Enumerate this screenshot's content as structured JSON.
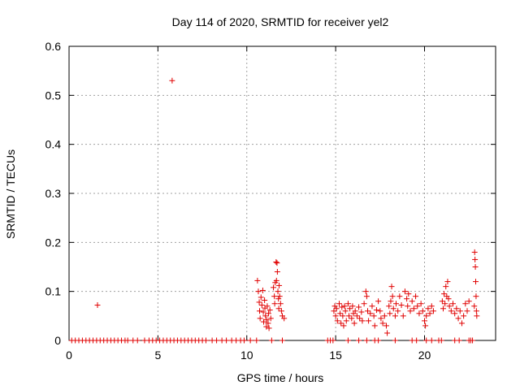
{
  "chart_data": {
    "type": "scatter",
    "title": "Day 114 of 2020, SRMTID for receiver yel2",
    "xlabel": "GPS time / hours",
    "ylabel": "SRMTID / TECUs",
    "xlim": [
      0,
      24
    ],
    "ylim": [
      0,
      0.6
    ],
    "xticks": [
      0,
      5,
      10,
      15,
      20
    ],
    "xtick_labels": [
      "0",
      "5",
      "10",
      "15",
      "20"
    ],
    "yticks": [
      0,
      0.1,
      0.2,
      0.3,
      0.4,
      0.5,
      0.6
    ],
    "ytick_labels": [
      "0",
      "0.1",
      "0.2",
      "0.3",
      "0.4",
      "0.5",
      "0.6"
    ],
    "grid": true,
    "marker": "+",
    "series": [
      {
        "name": "yel2",
        "color": "#e00000",
        "points": [
          [
            0.15,
            0
          ],
          [
            0.35,
            0
          ],
          [
            0.55,
            0
          ],
          [
            0.75,
            0
          ],
          [
            0.95,
            0
          ],
          [
            1.15,
            0
          ],
          [
            1.35,
            0
          ],
          [
            1.55,
            0
          ],
          [
            1.75,
            0
          ],
          [
            1.95,
            0
          ],
          [
            2.15,
            0
          ],
          [
            2.35,
            0
          ],
          [
            2.55,
            0
          ],
          [
            2.75,
            0
          ],
          [
            2.95,
            0
          ],
          [
            3.15,
            0
          ],
          [
            3.3,
            0
          ],
          [
            3.6,
            0
          ],
          [
            3.85,
            0
          ],
          [
            4.25,
            0
          ],
          [
            4.5,
            0
          ],
          [
            4.7,
            0
          ],
          [
            4.9,
            0
          ],
          [
            5.1,
            0
          ],
          [
            5.3,
            0
          ],
          [
            5.5,
            0
          ],
          [
            5.7,
            0
          ],
          [
            5.9,
            0
          ],
          [
            6.1,
            0
          ],
          [
            6.3,
            0
          ],
          [
            6.5,
            0
          ],
          [
            6.7,
            0
          ],
          [
            6.9,
            0
          ],
          [
            7.1,
            0
          ],
          [
            7.3,
            0
          ],
          [
            7.5,
            0
          ],
          [
            7.7,
            0
          ],
          [
            8.05,
            0
          ],
          [
            8.3,
            0
          ],
          [
            8.6,
            0
          ],
          [
            8.85,
            0
          ],
          [
            9.15,
            0
          ],
          [
            9.4,
            0
          ],
          [
            9.65,
            0
          ],
          [
            9.85,
            0
          ],
          [
            10.2,
            0
          ],
          [
            10.55,
            0
          ],
          [
            11.4,
            0
          ],
          [
            12.0,
            0
          ],
          [
            14.55,
            0
          ],
          [
            14.7,
            0
          ],
          [
            14.85,
            0
          ],
          [
            15.7,
            0
          ],
          [
            16.3,
            0
          ],
          [
            16.75,
            0
          ],
          [
            17.2,
            0
          ],
          [
            17.4,
            0
          ],
          [
            18.35,
            0
          ],
          [
            19.3,
            0
          ],
          [
            19.55,
            0
          ],
          [
            20.1,
            0
          ],
          [
            20.4,
            0
          ],
          [
            20.8,
            0
          ],
          [
            20.95,
            0
          ],
          [
            21.7,
            0
          ],
          [
            21.95,
            0
          ],
          [
            22.5,
            0
          ],
          [
            22.6,
            0
          ],
          [
            22.7,
            0
          ],
          [
            1.6,
            0.072
          ],
          [
            5.8,
            0.53
          ],
          [
            10.6,
            0.122
          ],
          [
            10.65,
            0.1
          ],
          [
            10.7,
            0.078
          ],
          [
            10.72,
            0.06
          ],
          [
            10.75,
            0.045
          ],
          [
            10.8,
            0.088
          ],
          [
            10.85,
            0.072
          ],
          [
            10.9,
            0.102
          ],
          [
            10.93,
            0.058
          ],
          [
            10.95,
            0.038
          ],
          [
            11.0,
            0.082
          ],
          [
            11.02,
            0.066
          ],
          [
            11.05,
            0.05
          ],
          [
            11.1,
            0.028
          ],
          [
            11.12,
            0.042
          ],
          [
            11.15,
            0.07
          ],
          [
            11.2,
            0.035
          ],
          [
            11.22,
            0.055
          ],
          [
            11.25,
            0.025
          ],
          [
            11.3,
            0.062
          ],
          [
            11.35,
            0.045
          ],
          [
            11.5,
            0.108
          ],
          [
            11.55,
            0.09
          ],
          [
            11.57,
            0.075
          ],
          [
            11.6,
            0.118
          ],
          [
            11.65,
            0.16
          ],
          [
            11.67,
            0.122
          ],
          [
            11.7,
            0.158
          ],
          [
            11.72,
            0.14
          ],
          [
            11.75,
            0.1
          ],
          [
            11.78,
            0.085
          ],
          [
            11.8,
            0.065
          ],
          [
            11.82,
            0.112
          ],
          [
            11.85,
            0.09
          ],
          [
            11.9,
            0.075
          ],
          [
            11.95,
            0.06
          ],
          [
            12.0,
            0.05
          ],
          [
            12.1,
            0.045
          ],
          [
            14.9,
            0.06
          ],
          [
            14.95,
            0.07
          ],
          [
            15.0,
            0.05
          ],
          [
            15.05,
            0.065
          ],
          [
            15.1,
            0.04
          ],
          [
            15.2,
            0.075
          ],
          [
            15.25,
            0.055
          ],
          [
            15.3,
            0.035
          ],
          [
            15.35,
            0.068
          ],
          [
            15.4,
            0.05
          ],
          [
            15.45,
            0.03
          ],
          [
            15.5,
            0.07
          ],
          [
            15.55,
            0.06
          ],
          [
            15.6,
            0.04
          ],
          [
            15.7,
            0.075
          ],
          [
            15.75,
            0.05
          ],
          [
            15.8,
            0.065
          ],
          [
            15.9,
            0.045
          ],
          [
            15.95,
            0.07
          ],
          [
            16.0,
            0.055
          ],
          [
            16.05,
            0.035
          ],
          [
            16.1,
            0.06
          ],
          [
            16.2,
            0.05
          ],
          [
            16.3,
            0.068
          ],
          [
            16.35,
            0.045
          ],
          [
            16.45,
            0.058
          ],
          [
            16.5,
            0.04
          ],
          [
            16.6,
            0.075
          ],
          [
            16.7,
            0.1
          ],
          [
            16.75,
            0.09
          ],
          [
            16.8,
            0.06
          ],
          [
            16.85,
            0.04
          ],
          [
            16.95,
            0.055
          ],
          [
            17.05,
            0.07
          ],
          [
            17.15,
            0.05
          ],
          [
            17.2,
            0.03
          ],
          [
            17.3,
            0.062
          ],
          [
            17.4,
            0.08
          ],
          [
            17.5,
            0.06
          ],
          [
            17.55,
            0.045
          ],
          [
            17.65,
            0.035
          ],
          [
            17.75,
            0.05
          ],
          [
            17.85,
            0.03
          ],
          [
            17.9,
            0.015
          ],
          [
            18.0,
            0.07
          ],
          [
            18.05,
            0.055
          ],
          [
            18.1,
            0.08
          ],
          [
            18.15,
            0.11
          ],
          [
            18.2,
            0.09
          ],
          [
            18.25,
            0.065
          ],
          [
            18.35,
            0.05
          ],
          [
            18.4,
            0.075
          ],
          [
            18.5,
            0.06
          ],
          [
            18.6,
            0.09
          ],
          [
            18.7,
            0.072
          ],
          [
            18.8,
            0.05
          ],
          [
            18.9,
            0.1
          ],
          [
            19.0,
            0.085
          ],
          [
            19.05,
            0.07
          ],
          [
            19.1,
            0.095
          ],
          [
            19.2,
            0.06
          ],
          [
            19.3,
            0.08
          ],
          [
            19.4,
            0.065
          ],
          [
            19.5,
            0.09
          ],
          [
            19.6,
            0.07
          ],
          [
            19.7,
            0.055
          ],
          [
            19.8,
            0.075
          ],
          [
            19.9,
            0.06
          ],
          [
            20.0,
            0.04
          ],
          [
            20.05,
            0.03
          ],
          [
            20.1,
            0.05
          ],
          [
            20.2,
            0.065
          ],
          [
            20.3,
            0.055
          ],
          [
            20.4,
            0.07
          ],
          [
            20.5,
            0.06
          ],
          [
            21.0,
            0.08
          ],
          [
            21.05,
            0.065
          ],
          [
            21.1,
            0.095
          ],
          [
            21.15,
            0.075
          ],
          [
            21.2,
            0.11
          ],
          [
            21.25,
            0.09
          ],
          [
            21.3,
            0.12
          ],
          [
            21.35,
            0.085
          ],
          [
            21.4,
            0.07
          ],
          [
            21.5,
            0.06
          ],
          [
            21.6,
            0.075
          ],
          [
            21.7,
            0.055
          ],
          [
            21.8,
            0.065
          ],
          [
            21.9,
            0.045
          ],
          [
            22.0,
            0.06
          ],
          [
            22.1,
            0.035
          ],
          [
            22.2,
            0.05
          ],
          [
            22.3,
            0.075
          ],
          [
            22.4,
            0.06
          ],
          [
            22.5,
            0.08
          ],
          [
            22.8,
            0.07
          ],
          [
            22.82,
            0.18
          ],
          [
            22.84,
            0.165
          ],
          [
            22.86,
            0.15
          ],
          [
            22.88,
            0.12
          ],
          [
            22.9,
            0.09
          ],
          [
            22.92,
            0.06
          ],
          [
            22.94,
            0.05
          ]
        ]
      }
    ]
  }
}
